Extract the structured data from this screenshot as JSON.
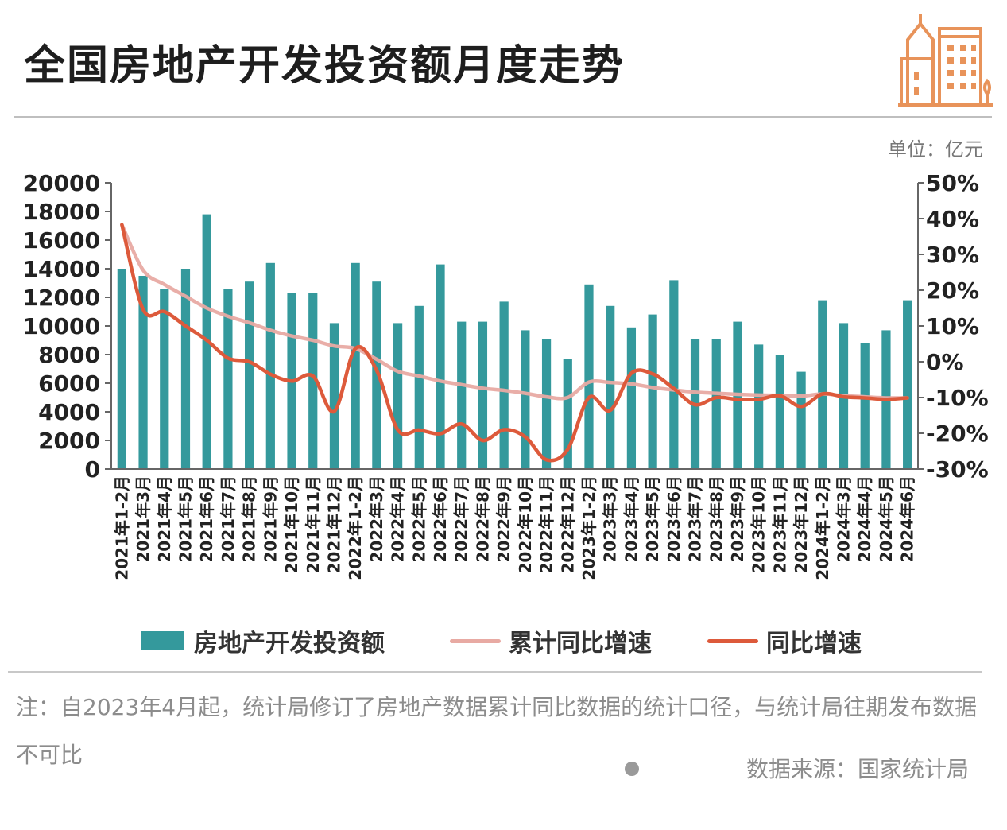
{
  "title": "全国房地产开发投资额月度走势",
  "unit_label": "单位：亿元",
  "note": "注：自2023年4月起，统计局修订了房地产数据累计同比数据的统计口径，与统计局往期发布数据不可比",
  "source": "数据来源：国家统计局",
  "colors": {
    "bar": "#34999c",
    "cumulative_line": "#e8aaa3",
    "yoy_line": "#dd5a3b"
  },
  "chart_data": {
    "type": "bar",
    "title": "全国房地产开发投资额月度走势",
    "unit": "亿元",
    "categories": [
      "2021年1-2月",
      "2021年3月",
      "2021年4月",
      "2021年5月",
      "2021年6月",
      "2021年7月",
      "2021年8月",
      "2021年9月",
      "2021年10月",
      "2021年11月",
      "2021年12月",
      "2022年1-2月",
      "2022年3月",
      "2022年4月",
      "2022年5月",
      "2022年6月",
      "2022年7月",
      "2022年8月",
      "2022年9月",
      "2022年10月",
      "2022年11月",
      "2022年12月",
      "2023年1-2月",
      "2023年3月",
      "2023年4月",
      "2023年5月",
      "2023年6月",
      "2023年7月",
      "2023年8月",
      "2023年9月",
      "2023年10月",
      "2023年11月",
      "2023年12月",
      "2024年1-2月",
      "2024年3月",
      "2024年4月",
      "2024年5月",
      "2024年6月"
    ],
    "ylim": [
      0,
      20000
    ],
    "yticks": [
      "20000",
      "18000",
      "16000",
      "14000",
      "12000",
      "10000",
      "8000",
      "6000",
      "4000",
      "2000",
      "0"
    ],
    "y2lim": [
      -30,
      50
    ],
    "y2ticks": [
      "50%",
      "40%",
      "30%",
      "20%",
      "10%",
      "0%",
      "-10%",
      "-20%",
      "-30%"
    ],
    "legend_position": "bottom",
    "series": [
      {
        "name": "房地产开发投资额",
        "type": "bar",
        "values": [
          14000,
          13500,
          12600,
          14000,
          17800,
          12600,
          13100,
          14400,
          12300,
          12300,
          10200,
          14400,
          13100,
          10200,
          11400,
          14300,
          10300,
          10300,
          11700,
          9700,
          9100,
          7700,
          12900,
          11400,
          9900,
          10800,
          13200,
          9100,
          9100,
          10300,
          8700,
          8000,
          6800,
          11800,
          10200,
          8800,
          9700,
          11800
        ]
      },
      {
        "name": "累计同比增速",
        "type": "line",
        "axis": "right",
        "values": [
          38.3,
          25.6,
          21.6,
          18.3,
          15.0,
          12.7,
          10.9,
          8.8,
          7.2,
          6.0,
          4.4,
          3.7,
          0.7,
          -2.7,
          -4.0,
          -5.4,
          -6.4,
          -7.4,
          -8.0,
          -8.8,
          -9.8,
          -10.0,
          -5.7,
          -5.8,
          -6.2,
          -7.2,
          -7.9,
          -8.5,
          -8.8,
          -9.1,
          -9.3,
          -9.4,
          -9.6,
          -9.0,
          -9.5,
          -9.8,
          -10.1,
          -10.1
        ]
      },
      {
        "name": "同比增速",
        "type": "line",
        "axis": "right",
        "values": [
          38.3,
          14.6,
          14.0,
          10.0,
          6.0,
          1.0,
          0.0,
          -3.5,
          -5.4,
          -4.0,
          -13.9,
          3.7,
          -2.4,
          -19.1,
          -19.1,
          -20.1,
          -17.4,
          -22.0,
          -19.0,
          -21.0,
          -27.4,
          -24.5,
          -10.0,
          -13.6,
          -3.2,
          -3.4,
          -7.5,
          -12.0,
          -10.0,
          -10.5,
          -10.5,
          -9.5,
          -12.5,
          -9.0,
          -9.8,
          -10.1,
          -10.5,
          -10.1
        ]
      }
    ]
  }
}
